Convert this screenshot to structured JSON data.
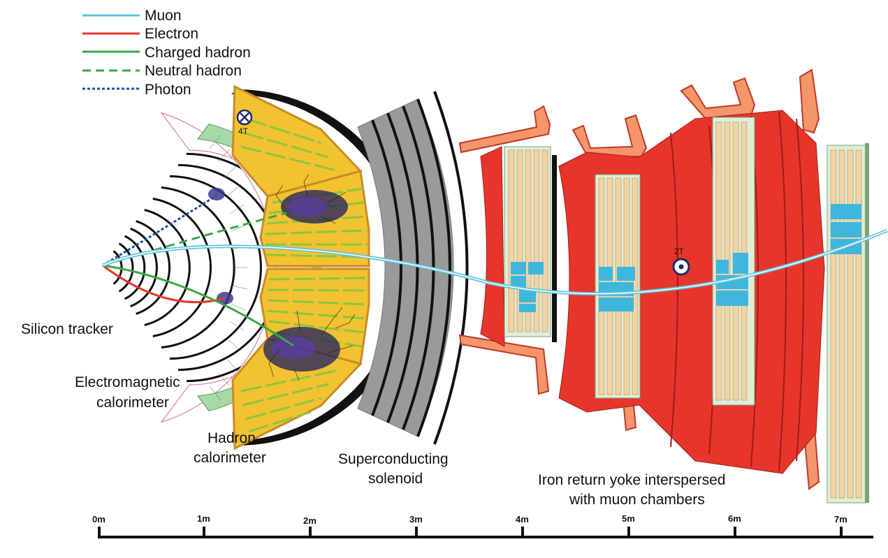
{
  "legend": [
    {
      "label": "Muon",
      "color": "#5fc3dd",
      "style": "solid"
    },
    {
      "label": "Electron",
      "color": "#e8352b",
      "style": "solid"
    },
    {
      "label": "Charged hadron",
      "color": "#3aa843",
      "style": "solid"
    },
    {
      "label": "Neutral hadron",
      "color": "#3aa843",
      "style": "dashed"
    },
    {
      "label": "Photon",
      "color": "#1f4fa0",
      "style": "dotted"
    }
  ],
  "field_labels": {
    "inner": "4T",
    "outer": "2T"
  },
  "components": {
    "silicon_tracker": "Silicon tracker",
    "ecal_line1": "Electromagnetic",
    "ecal_line2": "calorimeter",
    "hcal_line1": "Hadron",
    "hcal_line2": "calorimeter",
    "solenoid_line1": "Superconducting",
    "solenoid_line2": "solenoid",
    "yoke_line1": "Iron return yoke interspersed",
    "yoke_line2": "with muon chambers"
  },
  "scale_ticks": [
    "0m",
    "1m",
    "2m",
    "3m",
    "4m",
    "5m",
    "6m",
    "7m"
  ],
  "colors": {
    "tracker": "#111111",
    "ecal": "#a8d8a6",
    "hcal": "#f2c230",
    "hcal_stripe": "#8cc63e",
    "solenoid": "#9a9a9a",
    "yoke": "#e8352b",
    "yoke_edge": "#9c1d16",
    "bracket": "#f4956a",
    "muon_chamber": "#dfeed7",
    "muon_cell": "#f4d3a3",
    "muon_hit": "#3fb7dd"
  }
}
